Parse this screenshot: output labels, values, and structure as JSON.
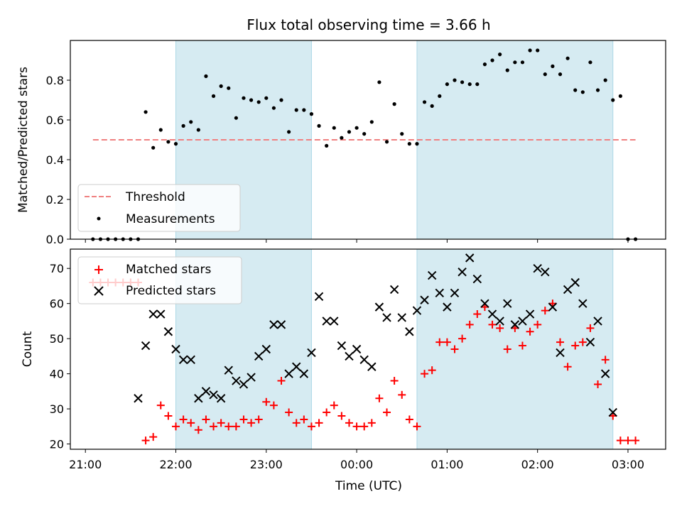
{
  "chart_data": [
    {
      "type": "scatter",
      "title": "Flux total observing time = 3.66 h",
      "ylabel": "Matched/Predicted stars",
      "ylim": [
        0,
        1.0
      ],
      "yticks": [
        "0.0",
        "0.2",
        "0.4",
        "0.6",
        "0.8"
      ],
      "xticks": [
        "21:00",
        "22:00",
        "23:00",
        "00:00",
        "01:00",
        "02:00",
        "03:00"
      ],
      "xlim": [
        "20:50",
        "03:25"
      ],
      "shaded_spans": [
        [
          "22:00",
          "23:30"
        ],
        [
          "00:40",
          "02:50"
        ]
      ],
      "shade_color": "#add8e6",
      "threshold": {
        "name": "Threshold",
        "value": 0.5,
        "x_range": [
          "21:05",
          "03:05"
        ],
        "color": "#f08080",
        "style": "dashed"
      },
      "legend": {
        "position": "lower left",
        "entries": [
          "Threshold",
          "Measurements"
        ]
      },
      "series": [
        {
          "name": "Measurements",
          "color": "#000000",
          "x": [
            "21:05",
            "21:10",
            "21:15",
            "21:20",
            "21:25",
            "21:30",
            "21:35",
            "21:40",
            "21:45",
            "21:50",
            "21:55",
            "22:00",
            "22:05",
            "22:10",
            "22:15",
            "22:20",
            "22:25",
            "22:30",
            "22:35",
            "22:40",
            "22:45",
            "22:50",
            "22:55",
            "23:00",
            "23:05",
            "23:10",
            "23:15",
            "23:20",
            "23:25",
            "23:30",
            "23:35",
            "23:40",
            "23:45",
            "23:50",
            "23:55",
            "00:00",
            "00:05",
            "00:10",
            "00:15",
            "00:20",
            "00:25",
            "00:30",
            "00:35",
            "00:40",
            "00:45",
            "00:50",
            "00:55",
            "01:00",
            "01:05",
            "01:10",
            "01:15",
            "01:20",
            "01:25",
            "01:30",
            "01:35",
            "01:40",
            "01:45",
            "01:50",
            "01:55",
            "02:00",
            "02:05",
            "02:10",
            "02:15",
            "02:20",
            "02:25",
            "02:30",
            "02:35",
            "02:40",
            "02:45",
            "02:50",
            "02:55",
            "03:00",
            "03:05"
          ],
          "y": [
            0,
            0,
            0,
            0,
            0,
            0,
            0,
            0.64,
            0.46,
            0.55,
            0.49,
            0.48,
            0.57,
            0.59,
            0.55,
            0.82,
            0.72,
            0.77,
            0.76,
            0.61,
            0.71,
            0.7,
            0.69,
            0.71,
            0.66,
            0.7,
            0.54,
            0.65,
            0.65,
            0.63,
            0.57,
            0.47,
            0.56,
            0.51,
            0.54,
            0.56,
            0.53,
            0.59,
            0.79,
            0.49,
            0.68,
            0.53,
            0.48,
            0.48,
            0.69,
            0.67,
            0.72,
            0.78,
            0.8,
            0.79,
            0.78,
            0.78,
            0.88,
            0.9,
            0.93,
            0.85,
            0.89,
            0.89,
            0.95,
            0.95,
            0.83,
            0.87,
            0.83,
            0.91,
            0.75,
            0.74,
            0.89,
            0.75,
            0.8,
            0.7,
            0.72,
            0,
            0
          ]
        }
      ]
    },
    {
      "type": "scatter",
      "xlabel": "Time (UTC)",
      "ylabel": "Count",
      "ylim": [
        18.5,
        75.5
      ],
      "yticks": [
        "20",
        "30",
        "40",
        "50",
        "60",
        "70"
      ],
      "xticks": [
        "21:00",
        "22:00",
        "23:00",
        "00:00",
        "01:00",
        "02:00",
        "03:00"
      ],
      "xlim": [
        "20:50",
        "03:25"
      ],
      "shaded_spans": [
        [
          "22:00",
          "23:30"
        ],
        [
          "00:40",
          "02:50"
        ]
      ],
      "legend": {
        "position": "upper left",
        "entries": [
          "Matched stars",
          "Predicted stars"
        ]
      },
      "series": [
        {
          "name": "Matched stars",
          "marker": "+",
          "color": "#ff0000",
          "x": [
            "21:05",
            "21:10",
            "21:15",
            "21:20",
            "21:25",
            "21:30",
            "21:35",
            "21:40",
            "21:45",
            "21:50",
            "21:55",
            "22:00",
            "22:05",
            "22:10",
            "22:15",
            "22:20",
            "22:25",
            "22:30",
            "22:35",
            "22:40",
            "22:45",
            "22:50",
            "22:55",
            "23:00",
            "23:05",
            "23:10",
            "23:15",
            "23:20",
            "23:25",
            "23:30",
            "23:35",
            "23:40",
            "23:45",
            "23:50",
            "23:55",
            "00:00",
            "00:05",
            "00:10",
            "00:15",
            "00:20",
            "00:25",
            "00:30",
            "00:35",
            "00:40",
            "00:45",
            "00:50",
            "00:55",
            "01:00",
            "01:05",
            "01:10",
            "01:15",
            "01:20",
            "01:25",
            "01:30",
            "01:35",
            "01:40",
            "01:45",
            "01:50",
            "01:55",
            "02:00",
            "02:05",
            "02:10",
            "02:15",
            "02:20",
            "02:25",
            "02:30",
            "02:35",
            "02:40",
            "02:45",
            "02:50",
            "02:55",
            "03:00",
            "03:05"
          ],
          "y": [
            66,
            66,
            66,
            66,
            66,
            66,
            66,
            21,
            22,
            31,
            28,
            25,
            27,
            26,
            24,
            27,
            25,
            26,
            25,
            25,
            27,
            26,
            27,
            32,
            31,
            38,
            29,
            26,
            27,
            25,
            26,
            29,
            31,
            28,
            26,
            25,
            25,
            26,
            33,
            29,
            38,
            34,
            27,
            25,
            40,
            41,
            49,
            49,
            47,
            50,
            54,
            57,
            59,
            54,
            53,
            47,
            53,
            48,
            52,
            54,
            58,
            60,
            49,
            42,
            48,
            49,
            53,
            37,
            44,
            28,
            21,
            21,
            21
          ]
        },
        {
          "name": "Predicted stars",
          "marker": "x",
          "color": "#000000",
          "x": [
            "21:35",
            "21:40",
            "21:45",
            "21:50",
            "21:55",
            "22:00",
            "22:05",
            "22:10",
            "22:15",
            "22:20",
            "22:25",
            "22:30",
            "22:35",
            "22:40",
            "22:45",
            "22:50",
            "22:55",
            "23:00",
            "23:05",
            "23:10",
            "23:15",
            "23:20",
            "23:25",
            "23:30",
            "23:35",
            "23:40",
            "23:45",
            "23:50",
            "23:55",
            "00:00",
            "00:05",
            "00:10",
            "00:15",
            "00:20",
            "00:25",
            "00:30",
            "00:35",
            "00:40",
            "00:45",
            "00:50",
            "00:55",
            "01:00",
            "01:05",
            "01:10",
            "01:15",
            "01:20",
            "01:25",
            "01:30",
            "01:35",
            "01:40",
            "01:45",
            "01:50",
            "01:55",
            "02:00",
            "02:05",
            "02:10",
            "02:15",
            "02:20",
            "02:25",
            "02:30",
            "02:35",
            "02:40",
            "02:45",
            "02:50"
          ],
          "y": [
            33,
            48,
            57,
            57,
            52,
            47,
            44,
            44,
            33,
            35,
            34,
            33,
            41,
            38,
            37,
            39,
            45,
            47,
            54,
            54,
            40,
            42,
            40,
            46,
            62,
            55,
            55,
            48,
            45,
            47,
            44,
            42,
            59,
            56,
            64,
            56,
            52,
            58,
            61,
            68,
            63,
            59,
            63,
            69,
            73,
            67,
            60,
            57,
            55,
            60,
            54,
            55,
            57,
            70,
            69,
            59,
            46,
            64,
            66,
            60,
            49,
            55,
            40,
            29
          ]
        }
      ]
    }
  ]
}
